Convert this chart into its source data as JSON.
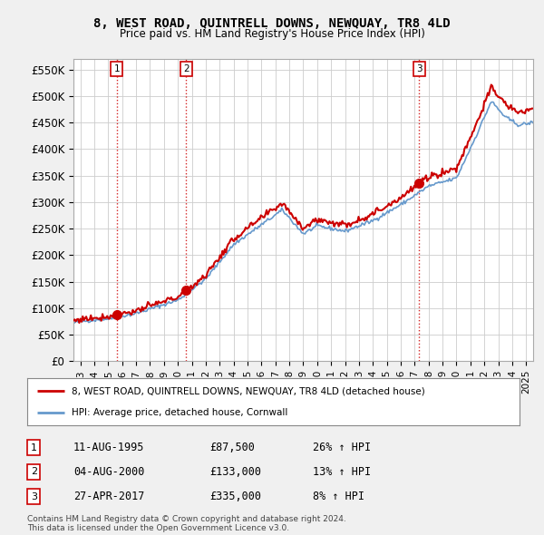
{
  "title": "8, WEST ROAD, QUINTRELL DOWNS, NEWQUAY, TR8 4LD",
  "subtitle": "Price paid vs. HM Land Registry's House Price Index (HPI)",
  "ylabel_ticks": [
    "£0",
    "£50K",
    "£100K",
    "£150K",
    "£200K",
    "£250K",
    "£300K",
    "£350K",
    "£400K",
    "£450K",
    "£500K",
    "£550K"
  ],
  "ytick_values": [
    0,
    50000,
    100000,
    150000,
    200000,
    250000,
    300000,
    350000,
    400000,
    450000,
    500000,
    550000
  ],
  "xmin": 1992.5,
  "xmax": 2025.5,
  "ymin": 0,
  "ymax": 570000,
  "sale_dates": [
    1995.6,
    2000.6,
    2017.32
  ],
  "sale_prices": [
    87500,
    133000,
    335000
  ],
  "sale_labels": [
    "1",
    "2",
    "3"
  ],
  "red_line_color": "#cc0000",
  "blue_line_color": "#6699cc",
  "dot_color": "#cc0000",
  "legend_label_red": "8, WEST ROAD, QUINTRELL DOWNS, NEWQUAY, TR8 4LD (detached house)",
  "legend_label_blue": "HPI: Average price, detached house, Cornwall",
  "hpi_base_points_x": [
    1992.5,
    1993.0,
    1995.0,
    1997.0,
    2000.0,
    2002.0,
    2004.0,
    2007.5,
    2009.0,
    2010.0,
    2012.0,
    2014.0,
    2016.0,
    2018.0,
    2020.0,
    2021.5,
    2022.5,
    2023.5,
    2024.5,
    2025.5
  ],
  "hpi_base_points_y": [
    72000,
    75000,
    80000,
    90000,
    115000,
    155000,
    220000,
    285000,
    240000,
    255000,
    245000,
    265000,
    295000,
    330000,
    345000,
    430000,
    490000,
    460000,
    445000,
    450000
  ],
  "table_rows": [
    [
      "1",
      "11-AUG-1995",
      "£87,500",
      "26% ↑ HPI"
    ],
    [
      "2",
      "04-AUG-2000",
      "£133,000",
      "13% ↑ HPI"
    ],
    [
      "3",
      "27-APR-2017",
      "£335,000",
      "8% ↑ HPI"
    ]
  ],
  "footer": "Contains HM Land Registry data © Crown copyright and database right 2024.\nThis data is licensed under the Open Government Licence v3.0.",
  "bg_color": "#f0f0f0",
  "plot_bg_color": "#ffffff",
  "grid_color": "#cccccc"
}
